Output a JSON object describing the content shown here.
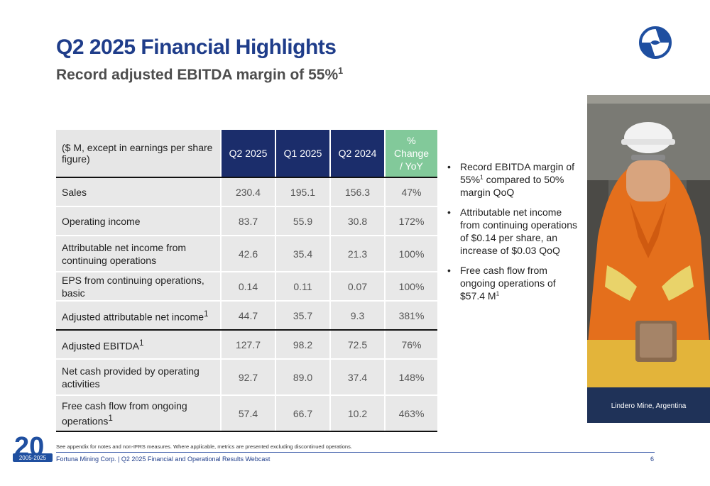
{
  "header": {
    "title": "Q2 2025 Financial Highlights",
    "subtitle": "Record adjusted EBITDA margin of 55%",
    "subtitle_sup": "1"
  },
  "table": {
    "header_label": "($ M, except in earnings per share figure)",
    "columns": [
      "Q2 2025",
      "Q1 2025",
      "Q2 2024"
    ],
    "pct_header": [
      "%",
      "Change",
      "/ YoY"
    ],
    "rows": [
      {
        "label": "Sales",
        "sup": "",
        "values": [
          "230.4",
          "195.1",
          "156.3",
          "47%"
        ]
      },
      {
        "label": "Operating income",
        "sup": "",
        "values": [
          "83.7",
          "55.9",
          "30.8",
          "172%"
        ]
      },
      {
        "label": "Attributable net income from continuing operations",
        "sup": "",
        "values": [
          "42.6",
          "35.4",
          "21.3",
          "100%"
        ]
      },
      {
        "label": "EPS from continuing operations, basic",
        "sup": "",
        "values": [
          "0.14",
          "0.11",
          "0.07",
          "100%"
        ]
      },
      {
        "label": "Adjusted attributable net income",
        "sup": "1",
        "values": [
          "44.7",
          "35.7",
          "9.3",
          "381%"
        ]
      },
      {
        "label": "Adjusted EBITDA",
        "sup": "1",
        "values": [
          "127.7",
          "98.2",
          "72.5",
          "76%"
        ]
      },
      {
        "label": "Net cash provided by operating activities",
        "sup": "",
        "values": [
          "92.7",
          "89.0",
          "37.4",
          "148%"
        ]
      },
      {
        "label": "Free cash flow from ongoing operations",
        "sup": "1",
        "values": [
          "57.4",
          "66.7",
          "10.2",
          "463%"
        ]
      }
    ]
  },
  "bullets": [
    {
      "pre": "Record EBITDA margin of 55%",
      "sup": "1",
      "post": " compared to 50% margin QoQ"
    },
    {
      "pre": "Attributable net income from continuing operations of $0.14 per share, an increase of $0.03 QoQ",
      "sup": "",
      "post": ""
    },
    {
      "pre": "Free cash flow from ongoing operations of $57.4 M",
      "sup": "1",
      "post": ""
    }
  ],
  "bullet_glyph": "•",
  "photo": {
    "caption": "Lindero Mine, Argentina"
  },
  "footer": {
    "note": "See appendix for notes and non-IFRS measures.  Where applicable, metrics are presented excluding discontinued operations.",
    "source": "Fortuna Mining Corp. | Q2 2025 Financial and Operational Results Webcast",
    "page": "6",
    "anniversary_years": "2005-2025"
  },
  "colors": {
    "title": "#1f3d8a",
    "header_navy": "#1b2d6b",
    "header_green": "#82c99a"
  },
  "icons": {
    "logo": "fortuna-logo-icon",
    "anniversary": "20-years-badge-icon"
  }
}
